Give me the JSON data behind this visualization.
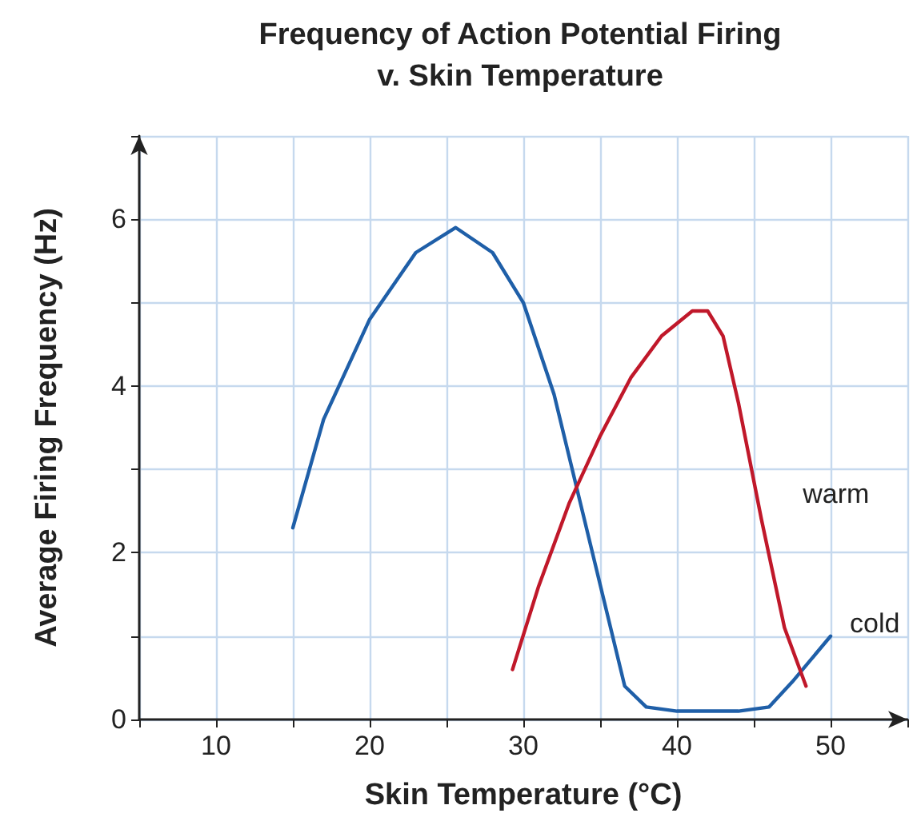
{
  "chart_data": {
    "type": "line",
    "title": "Frequency of Action Potential Firing\nv. Skin Temperature",
    "xlabel": "Skin Temperature (°C)",
    "ylabel": "Average Firing Frequency (Hz)",
    "xlim": [
      5,
      55
    ],
    "xticks": [
      {
        "value": 5,
        "label": null
      },
      10,
      {
        "value": 15,
        "label": null
      },
      20,
      {
        "value": 25,
        "label": null
      },
      30,
      {
        "value": 35,
        "label": null
      },
      40,
      {
        "value": 45,
        "label": null
      },
      50,
      {
        "value": 55,
        "label": null
      }
    ],
    "ylim": [
      0,
      7
    ],
    "yticks": [
      0,
      {
        "value": 1,
        "label": null
      },
      2,
      {
        "value": 3,
        "label": null
      },
      4,
      {
        "value": 5,
        "label": null
      },
      6,
      {
        "value": 7,
        "label": null
      }
    ],
    "grid": true,
    "marker": "none",
    "line_style": "solid",
    "series": [
      {
        "name": "cold",
        "color": "#1f5fa8",
        "x": [
          15,
          17,
          20,
          23,
          25.6,
          28,
          30,
          32,
          34.5,
          36.6,
          38,
          40,
          44,
          46,
          47.5,
          50
        ],
        "values": [
          2.3,
          3.6,
          4.8,
          5.6,
          5.9,
          5.6,
          5.0,
          3.9,
          2.0,
          0.4,
          0.15,
          0.1,
          0.1,
          0.15,
          0.45,
          1.0
        ]
      },
      {
        "name": "warm",
        "color": "#c0182a",
        "x": [
          29.3,
          31,
          33,
          35,
          37,
          39,
          41,
          42,
          43,
          44,
          45.5,
          47,
          48.4
        ],
        "values": [
          0.6,
          1.6,
          2.6,
          3.4,
          4.1,
          4.6,
          4.9,
          4.9,
          4.6,
          3.8,
          2.4,
          1.1,
          0.4
        ]
      }
    ]
  }
}
